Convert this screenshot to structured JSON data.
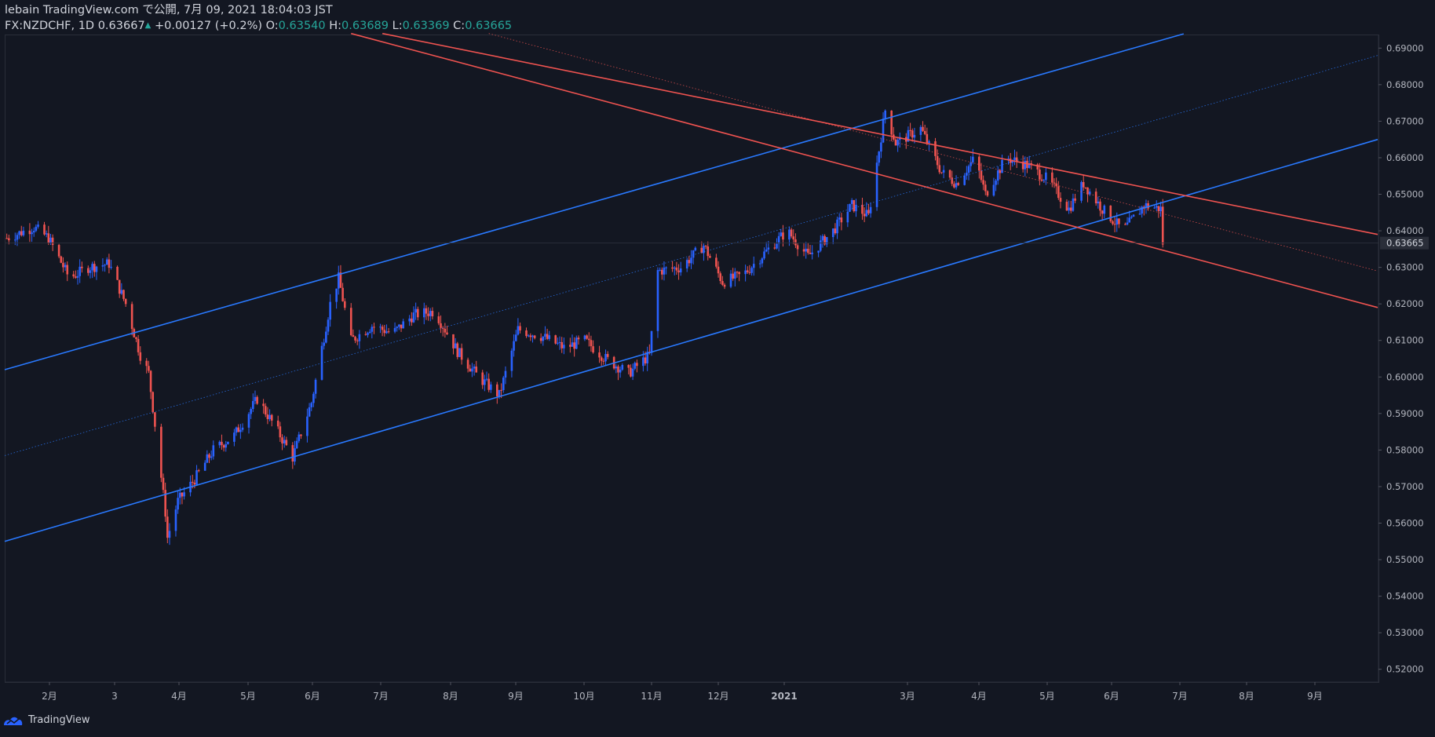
{
  "header": {
    "published": "lebain TradingView.com で公開, 7月 09, 2021 18:04:03 JST",
    "symbol": "FX:NZDCHF, 1D",
    "last": "0.63667",
    "change": "+0.00127 (+0.2%)",
    "o_label": "O:",
    "o": "0.63540",
    "h_label": "H:",
    "h": "0.63689",
    "l_label": "L:",
    "l": "0.63369",
    "c_label": "C:",
    "c": "0.63665"
  },
  "footer": {
    "brand": "TradingView"
  },
  "colors": {
    "background": "#131722",
    "up": "#2962ff",
    "down": "#ef5350",
    "blue_line": "#2979ff",
    "red_line": "#ef5350",
    "axis_text": "#b2b5be"
  },
  "chart_data": {
    "type": "candlestick",
    "y_ticks": [
      "0.69000",
      "0.68000",
      "0.67000",
      "0.66000",
      "0.65000",
      "0.64000",
      "0.63000",
      "0.62000",
      "0.61000",
      "0.60000",
      "0.59000",
      "0.58000",
      "0.57000",
      "0.56000",
      "0.55000",
      "0.54000",
      "0.53000",
      "0.52000"
    ],
    "ylim": [
      0.5165,
      0.6935
    ],
    "x_labels": [
      "2月",
      "3",
      "4月",
      "5月",
      "6月",
      "7月",
      "8月",
      "9月",
      "10月",
      "11月",
      "12月",
      "2021",
      "3月",
      "4月",
      "5月",
      "6月",
      "7月",
      "8月",
      "9月"
    ],
    "last_price_label": "0.63665",
    "close_path": [
      [
        "2020-01-02",
        0.638
      ],
      [
        "2020-01-15",
        0.641
      ],
      [
        "2020-01-22",
        0.638
      ],
      [
        "2020-02-01",
        0.627
      ],
      [
        "2020-02-10",
        0.63
      ],
      [
        "2020-02-20",
        0.631
      ],
      [
        "2020-02-28",
        0.62
      ],
      [
        "2020-03-06",
        0.606
      ],
      [
        "2020-03-10",
        0.601
      ],
      [
        "2020-03-13",
        0.587
      ],
      [
        "2020-03-18",
        0.563
      ],
      [
        "2020-03-19",
        0.556
      ],
      [
        "2020-03-24",
        0.566
      ],
      [
        "2020-04-01",
        0.572
      ],
      [
        "2020-04-10",
        0.58
      ],
      [
        "2020-04-20",
        0.584
      ],
      [
        "2020-05-01",
        0.594
      ],
      [
        "2020-05-10",
        0.586
      ],
      [
        "2020-05-18",
        0.578
      ],
      [
        "2020-05-27",
        0.593
      ],
      [
        "2020-06-05",
        0.62
      ],
      [
        "2020-06-09",
        0.627
      ],
      [
        "2020-06-15",
        0.61
      ],
      [
        "2020-06-25",
        0.614
      ],
      [
        "2020-07-05",
        0.612
      ],
      [
        "2020-07-15",
        0.617
      ],
      [
        "2020-07-25",
        0.618
      ],
      [
        "2020-08-05",
        0.607
      ],
      [
        "2020-08-15",
        0.6
      ],
      [
        "2020-08-25",
        0.595
      ],
      [
        "2020-09-03",
        0.613
      ],
      [
        "2020-09-15",
        0.611
      ],
      [
        "2020-09-25",
        0.608
      ],
      [
        "2020-10-05",
        0.61
      ],
      [
        "2020-10-15",
        0.605
      ],
      [
        "2020-10-26",
        0.601
      ],
      [
        "2020-11-05",
        0.606
      ],
      [
        "2020-11-09",
        0.629
      ],
      [
        "2020-11-20",
        0.63
      ],
      [
        "2020-12-01",
        0.636
      ],
      [
        "2020-12-10",
        0.626
      ],
      [
        "2020-12-20",
        0.628
      ],
      [
        "2021-01-01",
        0.635
      ],
      [
        "2021-01-10",
        0.64
      ],
      [
        "2021-01-20",
        0.633
      ],
      [
        "2021-02-01",
        0.64
      ],
      [
        "2021-02-10",
        0.647
      ],
      [
        "2021-02-18",
        0.644
      ],
      [
        "2021-02-26",
        0.673
      ],
      [
        "2021-03-03",
        0.664
      ],
      [
        "2021-03-15",
        0.668
      ],
      [
        "2021-03-25",
        0.656
      ],
      [
        "2021-04-01",
        0.653
      ],
      [
        "2021-04-10",
        0.66
      ],
      [
        "2021-04-15",
        0.65
      ],
      [
        "2021-04-25",
        0.66
      ],
      [
        "2021-05-05",
        0.658
      ],
      [
        "2021-05-15",
        0.654
      ],
      [
        "2021-05-25",
        0.646
      ],
      [
        "2021-06-01",
        0.653
      ],
      [
        "2021-06-10",
        0.646
      ],
      [
        "2021-06-20",
        0.64
      ],
      [
        "2021-06-30",
        0.647
      ],
      [
        "2021-07-08",
        0.646
      ],
      [
        "2021-07-09",
        0.6367
      ]
    ],
    "trendlines": [
      {
        "color": "blue",
        "style": "solid",
        "from": [
          "2020-01-01",
          0.602
        ],
        "to": [
          "2021-07-19",
          0.6939
        ]
      },
      {
        "color": "blue",
        "style": "solid",
        "from": [
          "2020-01-01",
          0.555
        ],
        "to": [
          "2021-10-20",
          0.665
        ]
      },
      {
        "color": "blue",
        "style": "dotted",
        "from": [
          "2020-01-01",
          0.5785
        ],
        "to": [
          "2021-10-20",
          0.688
        ]
      },
      {
        "color": "red",
        "style": "solid",
        "from": [
          "2020-06-30",
          0.694
        ],
        "to": [
          "2021-10-20",
          0.639
        ]
      },
      {
        "color": "red",
        "style": "solid",
        "from": [
          "2020-06-15",
          0.694
        ],
        "to": [
          "2021-10-20",
          0.619
        ]
      },
      {
        "color": "red",
        "style": "dotted",
        "from": [
          "2020-08-20",
          0.694
        ],
        "to": [
          "2021-10-20",
          0.629
        ]
      }
    ]
  }
}
